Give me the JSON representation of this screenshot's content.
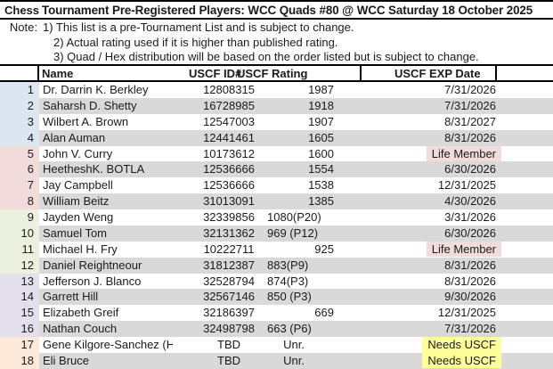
{
  "title": {
    "app": "Chess",
    "text": "Tournament Pre-Registered Players: WCC Quads #80 @ WCC Saturday 18 October 2025"
  },
  "notes": {
    "label": "Note:",
    "items": [
      "1) This list is a pre-Tournament List and is subject to change.",
      "2) Actual rating used if it is higher than published rating.",
      "3) Quad / Hex distribution will be based on the order listed but is subject to change."
    ]
  },
  "table": {
    "headers": {
      "name": "Name",
      "id": "USCF ID#",
      "rating": "USCF Rating",
      "exp": "USCF EXP Date"
    },
    "rows": [
      {
        "num": "1",
        "name": "Dr. Darrin K. Berkley",
        "id": "12808315",
        "rating": "1987",
        "exp": "7/31/2026",
        "exp_highlight": "none",
        "group": "blue"
      },
      {
        "num": "2",
        "name": "Saharsh D. Shetty",
        "id": "16728985",
        "rating": "1918",
        "exp": "7/31/2026",
        "exp_highlight": "none",
        "group": "blue"
      },
      {
        "num": "3",
        "name": "Wilbert A. Brown",
        "id": "12547003",
        "rating": "1907",
        "exp": "8/31/2027",
        "exp_highlight": "none",
        "group": "blue"
      },
      {
        "num": "4",
        "name": "Alan Auman",
        "id": "12441461",
        "rating": "1605",
        "exp": "8/31/2026",
        "exp_highlight": "none",
        "group": "blue"
      },
      {
        "num": "5",
        "name": "John V. Curry",
        "id": "10173612",
        "rating": "1600",
        "exp": "Life Member",
        "exp_highlight": "life",
        "group": "pink"
      },
      {
        "num": "6",
        "name": "HeetheshK. BOTLA",
        "id": "12536666",
        "rating": "1554",
        "exp": "6/30/2026",
        "exp_highlight": "none",
        "group": "pink"
      },
      {
        "num": "7",
        "name": "Jay Campbell",
        "id": "12536666",
        "rating": "1538",
        "exp": "12/31/2025",
        "exp_highlight": "none",
        "group": "pink"
      },
      {
        "num": "8",
        "name": "William Beitz",
        "id": "31013091",
        "rating": "1385",
        "exp": "4/30/2026",
        "exp_highlight": "none",
        "group": "pink"
      },
      {
        "num": "9",
        "name": "Jayden Weng",
        "id": "32339856",
        "rating": "1080(P20)",
        "exp": "3/31/2026",
        "exp_highlight": "none",
        "group": "green"
      },
      {
        "num": "10",
        "name": "Samuel Tom",
        "id": "32131362",
        "rating": "969 (P12)",
        "exp": "6/30/2026",
        "exp_highlight": "none",
        "group": "green"
      },
      {
        "num": "11",
        "name": "Michael H. Fry",
        "id": "10222711",
        "rating": "925",
        "exp": "Life Member",
        "exp_highlight": "life",
        "group": "green"
      },
      {
        "num": "12",
        "name": "Daniel Reightneour",
        "id": "31812387",
        "rating": "883(P9)",
        "exp": "8/31/2026",
        "exp_highlight": "none",
        "group": "green"
      },
      {
        "num": "13",
        "name": "Jefferson J. Blanco",
        "id": "32528794",
        "rating": "874(P3)",
        "exp": "8/31/2026",
        "exp_highlight": "none",
        "group": "lavender"
      },
      {
        "num": "14",
        "name": "Garrett Hill",
        "id": "32567146",
        "rating": "850 (P3)",
        "exp": "9/30/2026",
        "exp_highlight": "none",
        "group": "lavender"
      },
      {
        "num": "15",
        "name": "Elizabeth Greif",
        "id": "32186397",
        "rating": "669",
        "exp": "12/31/2025",
        "exp_highlight": "none",
        "group": "lavender"
      },
      {
        "num": "16",
        "name": "Nathan Couch",
        "id": "32498798",
        "rating": "663 (P6)",
        "exp": "7/31/2026",
        "exp_highlight": "none",
        "group": "lavender"
      },
      {
        "num": "17",
        "name": "Gene Kilgore-Sanchez (H)",
        "id": "TBD",
        "rating": "Unr.",
        "exp": "Needs USCF",
        "exp_highlight": "needs",
        "group": "peach"
      },
      {
        "num": "18",
        "name": "Eli Bruce",
        "id": "TBD",
        "rating": "Unr.",
        "exp": "Needs USCF",
        "exp_highlight": "needs",
        "group": "peach"
      }
    ]
  },
  "colors": {
    "groups": {
      "blue": "#dce6f1",
      "pink": "#f2dcdb",
      "green": "#ebf1de",
      "lavender": "#e4dfec",
      "peach": "#fde9d9"
    },
    "highlights": {
      "life": "#f2dcdb",
      "needs": "#ffff99"
    },
    "stripe": "#d9d9d9"
  }
}
